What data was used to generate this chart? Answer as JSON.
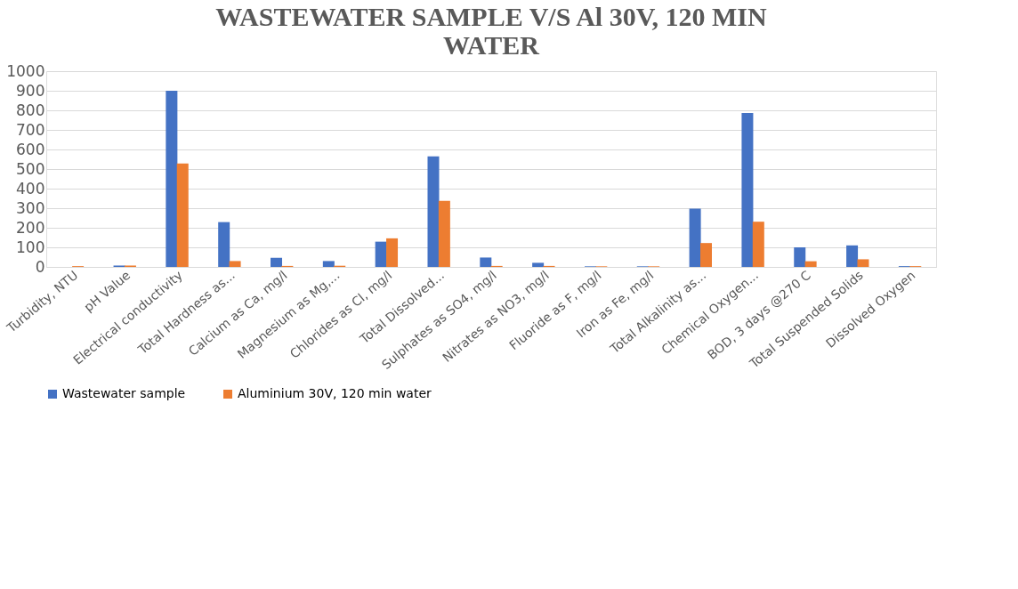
{
  "chart_data": {
    "type": "bar",
    "title": [
      "WASTEWATER SAMPLE V/S Al 30V, 120 MIN",
      "WATER"
    ],
    "categories": [
      "Turbidity, NTU",
      "pH Value",
      "Electrical conductivity",
      "Total Hardness as...",
      "Calcium as Ca, mg/l",
      "Magnesium as Mg,...",
      "Chlorides as Cl, mg/l",
      "Total Dissolved...",
      "Sulphates as SO4, mg/l",
      "Nitrates as NO3, mg/l",
      "Fluoride as F, mg/l",
      "Iron as Fe, mg/l",
      "Total Alkalinity as...",
      "Chemical Oxygen...",
      "BOD, 3 days @270 C",
      "Total Suspended Solids",
      "Dissolved Oxygen"
    ],
    "series": [
      {
        "name": "Wastewater sample",
        "color": "#4472c4",
        "values": [
          0,
          7,
          900,
          229,
          47,
          30,
          129,
          565,
          48,
          21,
          3,
          3,
          298,
          786,
          100,
          110,
          4
        ]
      },
      {
        "name": "Aluminium 30V, 120 min water",
        "color": "#ed7d31",
        "values": [
          4,
          7,
          528,
          30,
          5,
          6,
          146,
          338,
          5,
          5,
          3,
          3,
          122,
          231,
          29,
          39,
          4
        ]
      }
    ],
    "ylim": [
      0,
      1000
    ],
    "yticks": [
      0,
      100,
      200,
      300,
      400,
      500,
      600,
      700,
      800,
      900,
      1000
    ],
    "grid": "y",
    "legend": "bottom"
  }
}
